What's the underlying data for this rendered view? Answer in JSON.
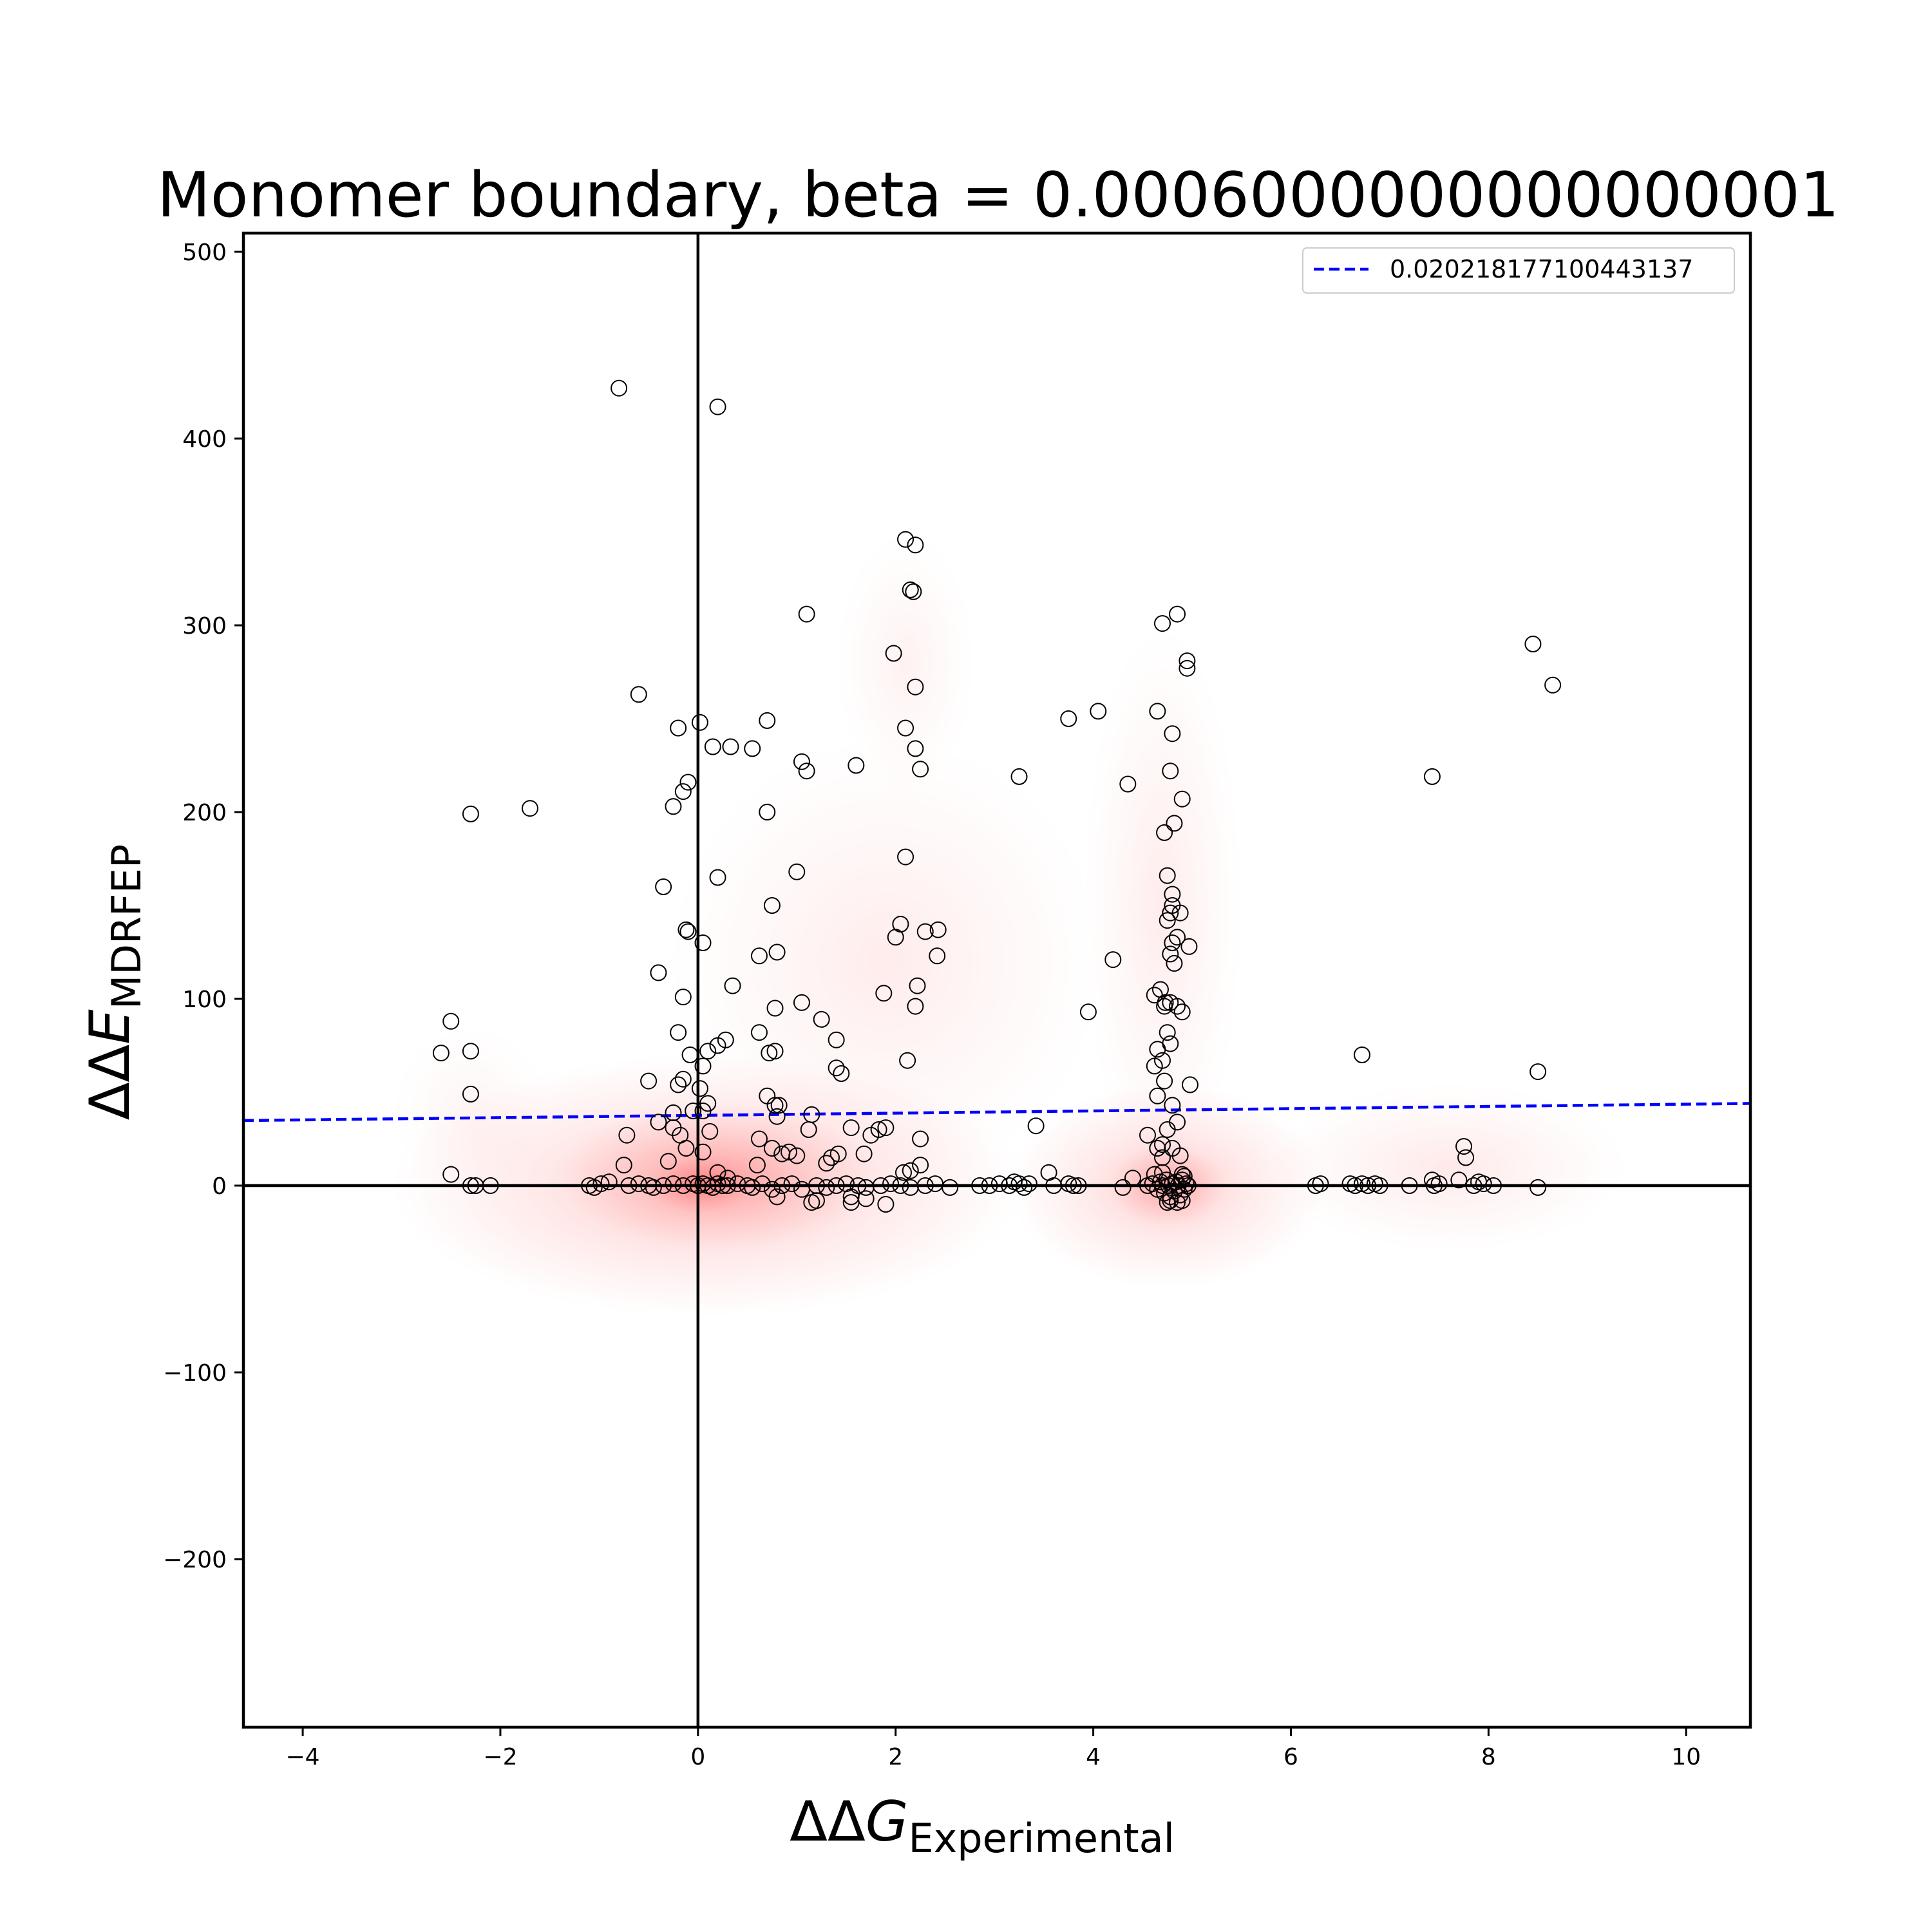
{
  "chart_data": {
    "type": "scatter",
    "title": "Monomer boundary, beta = 0.0006000000000000001",
    "xlabel": {
      "main": "ΔΔ",
      "italic": "G",
      "sub": "Experimental"
    },
    "ylabel": {
      "main": "ΔΔ",
      "italic": "E",
      "sub": "MDRFEP"
    },
    "xlim": [
      -4.6,
      10.65
    ],
    "ylim": [
      -290,
      510
    ],
    "xticks": [
      -4,
      -2,
      0,
      2,
      4,
      6,
      8,
      10
    ],
    "xtick_labels": [
      "−4",
      "−2",
      "0",
      "2",
      "4",
      "6",
      "8",
      "10"
    ],
    "yticks": [
      -200,
      -100,
      0,
      100,
      200,
      300,
      400,
      500
    ],
    "ytick_labels": [
      "−200",
      "−100",
      "0",
      "100",
      "200",
      "300",
      "400",
      "500"
    ],
    "reference_lines": {
      "x": 0,
      "y": 0
    },
    "grid": false,
    "legend": {
      "placement": "top-right",
      "entries": [
        {
          "label": "0.020218177100443137",
          "color": "#0000ff",
          "style": "dashed"
        }
      ]
    },
    "regression_line": {
      "slope": 0.6,
      "intercept": 37.6,
      "color": "#0000ff"
    },
    "density": {
      "color": "#ff0000",
      "blobs": [
        {
          "cx": 0.1,
          "cy": 0,
          "rx": 3.2,
          "ry": 70,
          "weight": 1.0
        },
        {
          "cx": 0.2,
          "cy": 5,
          "rx": 1.6,
          "ry": 40,
          "weight": 1.0
        },
        {
          "cx": 0.0,
          "cy": 0,
          "rx": 0.5,
          "ry": 15,
          "weight": 1.2
        },
        {
          "cx": 4.75,
          "cy": 0,
          "rx": 1.6,
          "ry": 55,
          "weight": 0.9
        },
        {
          "cx": 4.75,
          "cy": 0,
          "rx": 0.6,
          "ry": 22,
          "weight": 1.0
        },
        {
          "cx": 1.9,
          "cy": 120,
          "rx": 2.2,
          "ry": 120,
          "weight": 0.35
        },
        {
          "cx": 2.1,
          "cy": 280,
          "rx": 0.7,
          "ry": 70,
          "weight": 0.25
        },
        {
          "cx": 4.7,
          "cy": 150,
          "rx": 0.8,
          "ry": 150,
          "weight": 0.35
        },
        {
          "cx": 7.6,
          "cy": 10,
          "rx": 1.8,
          "ry": 45,
          "weight": 0.4
        },
        {
          "cx": -2.3,
          "cy": 40,
          "rx": 0.8,
          "ry": 45,
          "weight": 0.2
        }
      ]
    },
    "points": [
      [
        -0.8,
        427
      ],
      [
        0.2,
        417
      ],
      [
        2.1,
        346
      ],
      [
        2.2,
        343
      ],
      [
        2.15,
        319
      ],
      [
        2.18,
        318
      ],
      [
        1.1,
        306
      ],
      [
        4.85,
        306
      ],
      [
        4.7,
        301
      ],
      [
        8.45,
        290
      ],
      [
        4.95,
        281
      ],
      [
        4.95,
        277
      ],
      [
        1.98,
        285
      ],
      [
        2.2,
        267
      ],
      [
        8.65,
        268
      ],
      [
        -0.6,
        263
      ],
      [
        4.65,
        254
      ],
      [
        4.05,
        254
      ],
      [
        3.75,
        250
      ],
      [
        0.7,
        249
      ],
      [
        0.02,
        248
      ],
      [
        -0.2,
        245
      ],
      [
        2.1,
        245
      ],
      [
        4.8,
        242
      ],
      [
        0.15,
        235
      ],
      [
        0.33,
        235
      ],
      [
        0.55,
        234
      ],
      [
        2.2,
        234
      ],
      [
        1.05,
        227
      ],
      [
        1.6,
        225
      ],
      [
        1.1,
        222
      ],
      [
        2.25,
        223
      ],
      [
        4.78,
        222
      ],
      [
        3.25,
        219
      ],
      [
        7.43,
        219
      ],
      [
        -0.1,
        216
      ],
      [
        -0.15,
        211
      ],
      [
        4.35,
        215
      ],
      [
        4.9,
        207
      ],
      [
        -0.25,
        203
      ],
      [
        0.7,
        200
      ],
      [
        -2.3,
        199
      ],
      [
        -1.7,
        202
      ],
      [
        4.82,
        194
      ],
      [
        4.72,
        189
      ],
      [
        2.1,
        176
      ],
      [
        1.0,
        168
      ],
      [
        4.75,
        166
      ],
      [
        0.2,
        165
      ],
      [
        -0.35,
        160
      ],
      [
        4.8,
        156
      ],
      [
        0.75,
        150
      ],
      [
        4.8,
        150
      ],
      [
        4.78,
        146
      ],
      [
        4.75,
        142
      ],
      [
        4.88,
        146
      ],
      [
        2.05,
        140
      ],
      [
        2.43,
        137
      ],
      [
        -0.12,
        137
      ],
      [
        -0.1,
        136
      ],
      [
        2.3,
        136
      ],
      [
        2.0,
        133
      ],
      [
        4.8,
        130
      ],
      [
        4.85,
        133
      ],
      [
        4.97,
        128
      ],
      [
        0.05,
        130
      ],
      [
        0.8,
        125
      ],
      [
        4.78,
        124
      ],
      [
        2.42,
        123
      ],
      [
        0.62,
        123
      ],
      [
        4.2,
        121
      ],
      [
        4.82,
        119
      ],
      [
        -0.4,
        114
      ],
      [
        0.35,
        107
      ],
      [
        2.22,
        107
      ],
      [
        1.88,
        103
      ],
      [
        4.62,
        102
      ],
      [
        4.68,
        105
      ],
      [
        -0.15,
        101
      ],
      [
        4.73,
        98
      ],
      [
        4.78,
        98
      ],
      [
        1.05,
        98
      ],
      [
        0.78,
        95
      ],
      [
        2.2,
        96
      ],
      [
        4.72,
        96
      ],
      [
        4.85,
        96
      ],
      [
        4.9,
        93
      ],
      [
        3.95,
        93
      ],
      [
        -2.5,
        88
      ],
      [
        1.25,
        89
      ],
      [
        -0.2,
        82
      ],
      [
        0.62,
        82
      ],
      [
        4.75,
        82
      ],
      [
        1.4,
        78
      ],
      [
        0.28,
        78
      ],
      [
        0.2,
        75
      ],
      [
        4.78,
        76
      ],
      [
        0.1,
        72
      ],
      [
        0.78,
        72
      ],
      [
        0.72,
        71
      ],
      [
        -2.6,
        71
      ],
      [
        -2.3,
        72
      ],
      [
        6.72,
        70
      ],
      [
        -0.08,
        70
      ],
      [
        4.65,
        73
      ],
      [
        4.7,
        67
      ],
      [
        2.12,
        67
      ],
      [
        0.05,
        64
      ],
      [
        1.4,
        63
      ],
      [
        1.45,
        60
      ],
      [
        4.62,
        64
      ],
      [
        8.5,
        61
      ],
      [
        -0.5,
        56
      ],
      [
        4.98,
        54
      ],
      [
        -0.15,
        57
      ],
      [
        4.72,
        56
      ],
      [
        -0.2,
        54
      ],
      [
        0.02,
        52
      ],
      [
        -2.3,
        49
      ],
      [
        0.7,
        48
      ],
      [
        4.65,
        48
      ],
      [
        0.78,
        43
      ],
      [
        0.82,
        43
      ],
      [
        0.1,
        44
      ],
      [
        4.8,
        43
      ],
      [
        -0.05,
        40
      ],
      [
        -0.25,
        39
      ],
      [
        0.05,
        40
      ],
      [
        1.15,
        38
      ],
      [
        0.8,
        37
      ],
      [
        -0.4,
        34
      ],
      [
        3.42,
        32
      ],
      [
        -0.25,
        31
      ],
      [
        1.12,
        30
      ],
      [
        1.55,
        31
      ],
      [
        1.83,
        30
      ],
      [
        1.9,
        31
      ],
      [
        4.85,
        34
      ],
      [
        4.75,
        30
      ],
      [
        -0.18,
        27
      ],
      [
        0.12,
        29
      ],
      [
        -0.72,
        27
      ],
      [
        1.75,
        27
      ],
      [
        0.62,
        25
      ],
      [
        2.25,
        25
      ],
      [
        4.55,
        27
      ],
      [
        4.65,
        20
      ],
      [
        4.7,
        22
      ],
      [
        7.75,
        21
      ],
      [
        7.77,
        15
      ],
      [
        4.8,
        20
      ],
      [
        0.75,
        20
      ],
      [
        0.92,
        18
      ],
      [
        0.85,
        17
      ],
      [
        1.0,
        16
      ],
      [
        1.35,
        15
      ],
      [
        1.42,
        17
      ],
      [
        1.68,
        17
      ],
      [
        -0.12,
        20
      ],
      [
        0.05,
        18
      ],
      [
        4.7,
        15
      ],
      [
        4.88,
        16
      ],
      [
        1.3,
        12
      ],
      [
        2.25,
        11
      ],
      [
        -0.3,
        13
      ],
      [
        0.6,
        11
      ],
      [
        0.2,
        7
      ],
      [
        -0.75,
        11
      ],
      [
        -2.5,
        6
      ],
      [
        3.55,
        7
      ],
      [
        2.08,
        7
      ],
      [
        2.15,
        8
      ],
      [
        4.4,
        4
      ],
      [
        0.3,
        4
      ],
      [
        4.62,
        6
      ],
      [
        4.7,
        7
      ],
      [
        4.9,
        6
      ],
      [
        4.92,
        5
      ],
      [
        7.43,
        3
      ],
      [
        7.7,
        3
      ],
      [
        -0.9,
        2
      ],
      [
        -1.05,
        -1
      ],
      [
        -0.98,
        1
      ],
      [
        -1.1,
        0
      ],
      [
        -0.7,
        0
      ],
      [
        -0.6,
        1
      ],
      [
        -0.5,
        0
      ],
      [
        -0.45,
        -1
      ],
      [
        -0.35,
        0
      ],
      [
        -0.25,
        1
      ],
      [
        -0.15,
        0
      ],
      [
        -0.05,
        1
      ],
      [
        0.0,
        0
      ],
      [
        0.05,
        1
      ],
      [
        0.1,
        0
      ],
      [
        0.15,
        -1
      ],
      [
        0.2,
        1
      ],
      [
        0.25,
        0
      ],
      [
        0.3,
        0
      ],
      [
        0.4,
        1
      ],
      [
        0.5,
        0
      ],
      [
        0.55,
        -1
      ],
      [
        0.65,
        1
      ],
      [
        0.75,
        -2
      ],
      [
        0.85,
        0
      ],
      [
        0.95,
        1
      ],
      [
        1.05,
        -2
      ],
      [
        1.2,
        0
      ],
      [
        1.3,
        -1
      ],
      [
        1.4,
        0
      ],
      [
        1.5,
        1
      ],
      [
        1.55,
        -6
      ],
      [
        1.62,
        0
      ],
      [
        1.7,
        -1
      ],
      [
        1.85,
        0
      ],
      [
        1.95,
        1
      ],
      [
        2.05,
        0
      ],
      [
        2.15,
        -1
      ],
      [
        2.3,
        0
      ],
      [
        2.4,
        1
      ],
      [
        2.55,
        -1
      ],
      [
        2.85,
        0
      ],
      [
        2.95,
        0
      ],
      [
        3.05,
        1
      ],
      [
        3.15,
        0
      ],
      [
        3.2,
        2
      ],
      [
        3.25,
        1
      ],
      [
        3.3,
        -1
      ],
      [
        3.35,
        1
      ],
      [
        3.6,
        0
      ],
      [
        3.75,
        1
      ],
      [
        3.8,
        0
      ],
      [
        3.85,
        0
      ],
      [
        4.3,
        -1
      ],
      [
        4.55,
        0
      ],
      [
        4.6,
        1
      ],
      [
        4.65,
        -2
      ],
      [
        4.68,
        2
      ],
      [
        4.7,
        0
      ],
      [
        4.72,
        -4
      ],
      [
        4.74,
        3
      ],
      [
        4.76,
        0
      ],
      [
        4.78,
        -6
      ],
      [
        4.8,
        1
      ],
      [
        4.82,
        -3
      ],
      [
        4.84,
        2
      ],
      [
        4.86,
        0
      ],
      [
        4.88,
        -5
      ],
      [
        4.9,
        3
      ],
      [
        4.92,
        -2
      ],
      [
        4.94,
        1
      ],
      [
        4.96,
        0
      ],
      [
        4.75,
        -9
      ],
      [
        4.85,
        -9
      ],
      [
        4.9,
        -8
      ],
      [
        4.78,
        -8
      ],
      [
        1.15,
        -9
      ],
      [
        1.2,
        -8
      ],
      [
        1.9,
        -10
      ],
      [
        1.55,
        -9
      ],
      [
        1.7,
        -7
      ],
      [
        0.8,
        -6
      ],
      [
        6.25,
        0
      ],
      [
        6.3,
        1
      ],
      [
        6.6,
        1
      ],
      [
        6.65,
        0
      ],
      [
        6.72,
        1
      ],
      [
        6.78,
        0
      ],
      [
        6.85,
        1
      ],
      [
        6.9,
        0
      ],
      [
        7.2,
        0
      ],
      [
        7.45,
        0
      ],
      [
        7.5,
        1
      ],
      [
        7.85,
        0
      ],
      [
        7.9,
        2
      ],
      [
        7.95,
        1
      ],
      [
        8.05,
        0
      ],
      [
        8.5,
        -1
      ],
      [
        -2.3,
        0
      ],
      [
        -2.25,
        0
      ],
      [
        -2.1,
        0
      ]
    ]
  }
}
